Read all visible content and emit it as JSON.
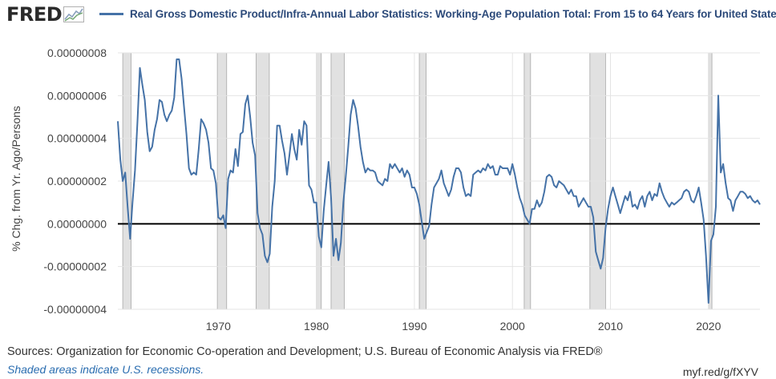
{
  "header": {
    "logo_text": "FRED",
    "legend_label": "Real Gross Domestic Product/Infra-Annual Labor Statistics: Working-Age Population Total: From 15 to 64 Years for United States",
    "series_color": "#4572a7"
  },
  "footer": {
    "sources": "Sources: Organization for Economic Co-operation and Development; U.S. Bureau of Economic Analysis via FRED®",
    "recession_note": "Shaded areas indicate U.S. recessions.",
    "short_link": "myf.red/g/fXYV"
  },
  "chart_data": {
    "type": "line",
    "ylabel": "% Chg. from Yr. Ago/Persons",
    "xlim": [
      1959.75,
      2025.25
    ],
    "ylim": [
      -4e-08,
      8e-08
    ],
    "x_ticks": [
      1970,
      1980,
      1990,
      2000,
      2010,
      2020
    ],
    "x_tick_labels": [
      "1970",
      "1980",
      "1990",
      "2000",
      "2010",
      "2020"
    ],
    "y_ticks": [
      -4e-08,
      -2e-08,
      0,
      2e-08,
      4e-08,
      6e-08,
      8e-08
    ],
    "y_tick_labels": [
      "-0.00000004",
      "-0.00000002",
      "0.00000000",
      "0.00000002",
      "0.00000004",
      "0.00000006",
      "0.00000008"
    ],
    "grid": true,
    "zero_line": true,
    "legend": "top",
    "recessions": [
      [
        1960.25,
        1961.1
      ],
      [
        1969.9,
        1970.85
      ],
      [
        1973.85,
        1975.2
      ],
      [
        1980.0,
        1980.5
      ],
      [
        1981.5,
        1982.85
      ],
      [
        1990.5,
        1991.2
      ],
      [
        2001.2,
        2001.85
      ],
      [
        2007.9,
        2009.5
      ],
      [
        2020.0,
        2020.35
      ]
    ],
    "series": [
      {
        "values_scale": 1e-08,
        "points": [
          [
            1959.75,
            4.8
          ],
          [
            1960.0,
            3.0
          ],
          [
            1960.25,
            2.0
          ],
          [
            1960.5,
            2.4
          ],
          [
            1960.75,
            0.8
          ],
          [
            1961.0,
            -0.7
          ],
          [
            1961.25,
            1.0
          ],
          [
            1961.5,
            2.5
          ],
          [
            1961.75,
            4.8
          ],
          [
            1962.0,
            7.3
          ],
          [
            1962.25,
            6.5
          ],
          [
            1962.5,
            5.8
          ],
          [
            1962.75,
            4.3
          ],
          [
            1963.0,
            3.4
          ],
          [
            1963.25,
            3.6
          ],
          [
            1963.5,
            4.4
          ],
          [
            1963.75,
            4.9
          ],
          [
            1964.0,
            5.8
          ],
          [
            1964.25,
            5.7
          ],
          [
            1964.5,
            5.1
          ],
          [
            1964.75,
            4.8
          ],
          [
            1965.0,
            5.1
          ],
          [
            1965.25,
            5.3
          ],
          [
            1965.5,
            5.9
          ],
          [
            1965.75,
            7.7
          ],
          [
            1966.0,
            7.7
          ],
          [
            1966.25,
            6.8
          ],
          [
            1966.5,
            5.5
          ],
          [
            1966.75,
            4.2
          ],
          [
            1967.0,
            2.6
          ],
          [
            1967.25,
            2.3
          ],
          [
            1967.5,
            2.4
          ],
          [
            1967.75,
            2.3
          ],
          [
            1968.0,
            3.5
          ],
          [
            1968.25,
            4.9
          ],
          [
            1968.5,
            4.7
          ],
          [
            1968.75,
            4.4
          ],
          [
            1969.0,
            3.8
          ],
          [
            1969.25,
            2.6
          ],
          [
            1969.5,
            2.5
          ],
          [
            1969.75,
            1.9
          ],
          [
            1970.0,
            0.3
          ],
          [
            1970.25,
            0.2
          ],
          [
            1970.5,
            0.4
          ],
          [
            1970.75,
            -0.2
          ],
          [
            1971.0,
            2.1
          ],
          [
            1971.25,
            2.5
          ],
          [
            1971.5,
            2.4
          ],
          [
            1971.75,
            3.5
          ],
          [
            1972.0,
            2.7
          ],
          [
            1972.25,
            4.2
          ],
          [
            1972.5,
            4.3
          ],
          [
            1972.75,
            5.6
          ],
          [
            1973.0,
            6.0
          ],
          [
            1973.25,
            5.0
          ],
          [
            1973.5,
            3.8
          ],
          [
            1973.75,
            3.2
          ],
          [
            1974.0,
            0.5
          ],
          [
            1974.25,
            -0.2
          ],
          [
            1974.5,
            -0.5
          ],
          [
            1974.75,
            -1.5
          ],
          [
            1975.0,
            -1.8
          ],
          [
            1975.25,
            -1.4
          ],
          [
            1975.5,
            0.8
          ],
          [
            1975.75,
            2.0
          ],
          [
            1976.0,
            4.6
          ],
          [
            1976.25,
            4.6
          ],
          [
            1976.5,
            3.9
          ],
          [
            1976.75,
            3.3
          ],
          [
            1977.0,
            2.3
          ],
          [
            1977.25,
            3.2
          ],
          [
            1977.5,
            4.2
          ],
          [
            1977.75,
            3.5
          ],
          [
            1978.0,
            3.0
          ],
          [
            1978.25,
            4.4
          ],
          [
            1978.5,
            3.7
          ],
          [
            1978.75,
            4.8
          ],
          [
            1979.0,
            4.6
          ],
          [
            1979.25,
            1.8
          ],
          [
            1979.5,
            1.6
          ],
          [
            1979.75,
            1.0
          ],
          [
            1980.0,
            1.0
          ],
          [
            1980.25,
            -0.6
          ],
          [
            1980.5,
            -1.1
          ],
          [
            1980.75,
            0.6
          ],
          [
            1981.0,
            1.8
          ],
          [
            1981.25,
            2.9
          ],
          [
            1981.5,
            1.2
          ],
          [
            1981.75,
            -1.5
          ],
          [
            1982.0,
            -0.7
          ],
          [
            1982.25,
            -1.7
          ],
          [
            1982.5,
            -0.9
          ],
          [
            1982.75,
            1.0
          ],
          [
            1983.0,
            2.2
          ],
          [
            1983.25,
            3.6
          ],
          [
            1983.5,
            5.1
          ],
          [
            1983.75,
            5.8
          ],
          [
            1984.0,
            5.4
          ],
          [
            1984.25,
            4.6
          ],
          [
            1984.5,
            3.6
          ],
          [
            1984.75,
            2.9
          ],
          [
            1985.0,
            2.4
          ],
          [
            1985.25,
            2.6
          ],
          [
            1985.5,
            2.5
          ],
          [
            1985.75,
            2.5
          ],
          [
            1986.0,
            2.4
          ],
          [
            1986.25,
            2.0
          ],
          [
            1986.5,
            1.9
          ],
          [
            1986.75,
            1.8
          ],
          [
            1987.0,
            2.1
          ],
          [
            1987.25,
            2.0
          ],
          [
            1987.5,
            2.8
          ],
          [
            1987.75,
            2.6
          ],
          [
            1988.0,
            2.8
          ],
          [
            1988.25,
            2.6
          ],
          [
            1988.5,
            2.4
          ],
          [
            1988.75,
            2.6
          ],
          [
            1989.0,
            2.2
          ],
          [
            1989.25,
            2.5
          ],
          [
            1989.5,
            2.3
          ],
          [
            1989.75,
            1.7
          ],
          [
            1990.0,
            1.7
          ],
          [
            1990.25,
            1.4
          ],
          [
            1990.5,
            0.9
          ],
          [
            1990.75,
            0.1
          ],
          [
            1991.0,
            -0.7
          ],
          [
            1991.25,
            -0.4
          ],
          [
            1991.5,
            -0.1
          ],
          [
            1991.75,
            0.9
          ],
          [
            1992.0,
            1.7
          ],
          [
            1992.25,
            1.9
          ],
          [
            1992.5,
            2.1
          ],
          [
            1992.75,
            2.5
          ],
          [
            1993.0,
            1.9
          ],
          [
            1993.25,
            1.6
          ],
          [
            1993.5,
            1.3
          ],
          [
            1993.75,
            1.6
          ],
          [
            1994.0,
            2.2
          ],
          [
            1994.25,
            2.6
          ],
          [
            1994.5,
            2.6
          ],
          [
            1994.75,
            2.4
          ],
          [
            1995.0,
            1.7
          ],
          [
            1995.25,
            1.3
          ],
          [
            1995.5,
            1.4
          ],
          [
            1995.75,
            1.3
          ],
          [
            1996.0,
            2.3
          ],
          [
            1996.25,
            2.4
          ],
          [
            1996.5,
            2.5
          ],
          [
            1996.75,
            2.4
          ],
          [
            1997.0,
            2.6
          ],
          [
            1997.25,
            2.5
          ],
          [
            1997.5,
            2.8
          ],
          [
            1997.75,
            2.6
          ],
          [
            1998.0,
            2.7
          ],
          [
            1998.25,
            2.3
          ],
          [
            1998.5,
            2.3
          ],
          [
            1998.75,
            2.7
          ],
          [
            1999.0,
            2.6
          ],
          [
            1999.25,
            2.6
          ],
          [
            1999.5,
            2.6
          ],
          [
            1999.75,
            2.3
          ],
          [
            2000.0,
            2.8
          ],
          [
            2000.25,
            2.3
          ],
          [
            2000.5,
            1.7
          ],
          [
            2000.75,
            1.2
          ],
          [
            2001.0,
            0.9
          ],
          [
            2001.25,
            0.4
          ],
          [
            2001.5,
            0.2
          ],
          [
            2001.75,
            0.0
          ],
          [
            2002.0,
            0.7
          ],
          [
            2002.25,
            0.7
          ],
          [
            2002.5,
            1.1
          ],
          [
            2002.75,
            0.8
          ],
          [
            2003.0,
            1.0
          ],
          [
            2003.25,
            1.5
          ],
          [
            2003.5,
            2.2
          ],
          [
            2003.75,
            2.3
          ],
          [
            2004.0,
            2.2
          ],
          [
            2004.25,
            1.8
          ],
          [
            2004.5,
            1.7
          ],
          [
            2004.75,
            2.0
          ],
          [
            2005.0,
            1.9
          ],
          [
            2005.25,
            1.8
          ],
          [
            2005.5,
            1.6
          ],
          [
            2005.75,
            1.4
          ],
          [
            2006.0,
            1.6
          ],
          [
            2006.25,
            1.3
          ],
          [
            2006.5,
            1.3
          ],
          [
            2006.75,
            0.8
          ],
          [
            2007.0,
            1.0
          ],
          [
            2007.25,
            1.2
          ],
          [
            2007.5,
            1.0
          ],
          [
            2007.75,
            0.8
          ],
          [
            2008.0,
            0.8
          ],
          [
            2008.25,
            0.3
          ],
          [
            2008.5,
            -1.3
          ],
          [
            2008.75,
            -1.7
          ],
          [
            2009.0,
            -2.1
          ],
          [
            2009.25,
            -1.6
          ],
          [
            2009.5,
            -0.2
          ],
          [
            2009.75,
            0.7
          ],
          [
            2010.0,
            1.3
          ],
          [
            2010.25,
            1.7
          ],
          [
            2010.5,
            1.3
          ],
          [
            2010.75,
            0.9
          ],
          [
            2011.0,
            0.5
          ],
          [
            2011.25,
            0.9
          ],
          [
            2011.5,
            1.3
          ],
          [
            2011.75,
            1.1
          ],
          [
            2012.0,
            1.5
          ],
          [
            2012.25,
            0.8
          ],
          [
            2012.5,
            0.9
          ],
          [
            2012.75,
            0.7
          ],
          [
            2013.0,
            1.1
          ],
          [
            2013.25,
            1.3
          ],
          [
            2013.5,
            0.8
          ],
          [
            2013.75,
            1.3
          ],
          [
            2014.0,
            1.5
          ],
          [
            2014.25,
            1.1
          ],
          [
            2014.5,
            1.4
          ],
          [
            2014.75,
            1.3
          ],
          [
            2015.0,
            1.9
          ],
          [
            2015.25,
            1.5
          ],
          [
            2015.5,
            1.2
          ],
          [
            2015.75,
            1.0
          ],
          [
            2016.0,
            0.8
          ],
          [
            2016.25,
            1.0
          ],
          [
            2016.5,
            0.9
          ],
          [
            2016.75,
            1.0
          ],
          [
            2017.0,
            1.1
          ],
          [
            2017.25,
            1.2
          ],
          [
            2017.5,
            1.5
          ],
          [
            2017.75,
            1.6
          ],
          [
            2018.0,
            1.5
          ],
          [
            2018.25,
            1.1
          ],
          [
            2018.5,
            1.0
          ],
          [
            2018.75,
            1.3
          ],
          [
            2019.0,
            1.7
          ],
          [
            2019.25,
            1.0
          ],
          [
            2019.5,
            0.2
          ],
          [
            2019.75,
            -1.5
          ],
          [
            2020.0,
            -3.7
          ],
          [
            2020.25,
            -0.8
          ],
          [
            2020.5,
            -0.5
          ],
          [
            2020.75,
            0.8
          ],
          [
            2021.0,
            6.0
          ],
          [
            2021.25,
            2.4
          ],
          [
            2021.5,
            2.8
          ],
          [
            2021.75,
            1.9
          ],
          [
            2022.0,
            1.2
          ],
          [
            2022.25,
            1.1
          ],
          [
            2022.5,
            0.6
          ],
          [
            2022.75,
            1.1
          ],
          [
            2023.0,
            1.3
          ],
          [
            2023.25,
            1.5
          ],
          [
            2023.5,
            1.5
          ],
          [
            2023.75,
            1.4
          ],
          [
            2024.0,
            1.2
          ],
          [
            2024.25,
            1.3
          ],
          [
            2024.5,
            1.1
          ],
          [
            2024.75,
            1.0
          ],
          [
            2025.0,
            1.1
          ],
          [
            2025.25,
            0.9
          ]
        ]
      }
    ]
  }
}
